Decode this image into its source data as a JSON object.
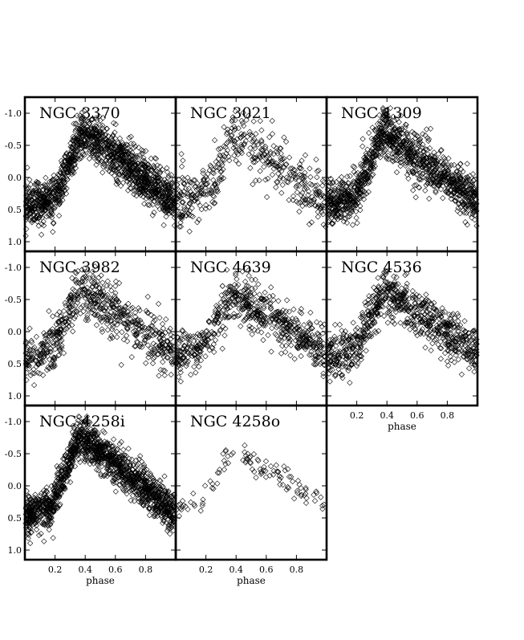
{
  "chart_data": {
    "type": "scatter",
    "layout": "grid of light-curve panels (3 columns), shared axes",
    "xlabel": "phase",
    "xlim": [
      0.0,
      1.0
    ],
    "ylim": [
      1.1,
      -1.1
    ],
    "y_inverted": true,
    "xticks": [
      0.2,
      0.4,
      0.6,
      0.8
    ],
    "xtick_labels": [
      "0.2",
      "0.4",
      "0.6",
      "0.8"
    ],
    "yticks": [
      -1.0,
      -0.5,
      0.0,
      0.5,
      1.0
    ],
    "ytick_labels": [
      "-1.0",
      "-0.5",
      "0.0",
      "0.5",
      "1.0"
    ],
    "marker": "open-diamond",
    "marker_color": "#000000",
    "grid": false,
    "panels": [
      {
        "title": "NGC 3370",
        "row": 0,
        "col": 0,
        "points": 1400,
        "peak_phase": 0.38,
        "amp": 0.75,
        "scatter": 0.17,
        "ylabels": true,
        "xlabels": false
      },
      {
        "title": "NGC 3021",
        "row": 0,
        "col": 1,
        "points": 450,
        "peak_phase": 0.38,
        "amp": 0.65,
        "scatter": 0.22,
        "ylabels": false,
        "xlabels": false
      },
      {
        "title": "NGC 1309",
        "row": 0,
        "col": 2,
        "points": 1200,
        "peak_phase": 0.37,
        "amp": 0.72,
        "scatter": 0.18,
        "ylabels": false,
        "xlabels": false
      },
      {
        "title": "NGC 3982",
        "row": 1,
        "col": 0,
        "points": 650,
        "peak_phase": 0.36,
        "amp": 0.72,
        "scatter": 0.2,
        "ylabels": true,
        "xlabels": false
      },
      {
        "title": "NGC 4639",
        "row": 1,
        "col": 1,
        "points": 650,
        "peak_phase": 0.37,
        "amp": 0.62,
        "scatter": 0.18,
        "ylabels": false,
        "xlabels": false
      },
      {
        "title": "NGC 4536",
        "row": 1,
        "col": 2,
        "points": 800,
        "peak_phase": 0.38,
        "amp": 0.65,
        "scatter": 0.18,
        "ylabels": false,
        "xlabels": true
      },
      {
        "title": "NGC 4258i",
        "row": 2,
        "col": 0,
        "points": 1500,
        "peak_phase": 0.36,
        "amp": 0.8,
        "scatter": 0.15,
        "ylabels": true,
        "xlabels": true
      },
      {
        "title": "NGC 4258o",
        "row": 2,
        "col": 1,
        "points": 110,
        "peak_phase": 0.37,
        "amp": 0.6,
        "scatter": 0.1,
        "ylabels": false,
        "xlabels": true
      }
    ]
  }
}
